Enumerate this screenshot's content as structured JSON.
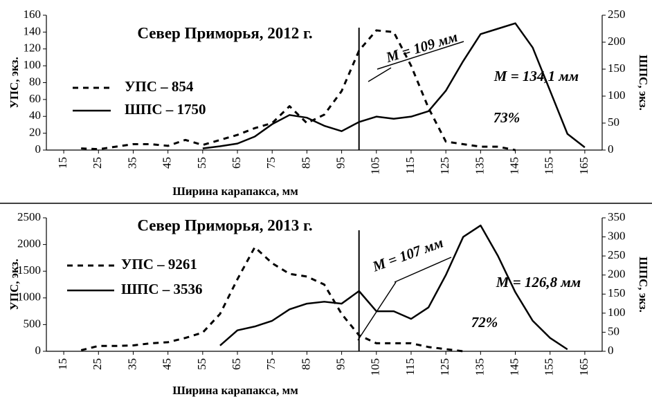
{
  "chart_data": [
    {
      "type": "line",
      "title": "Север Приморья, 2012 г.",
      "x_label": "Ширина карапакса, мм",
      "y_label": "УПС, экз.",
      "y2_label": "ШПС, экз.",
      "x": [
        20,
        25,
        30,
        35,
        40,
        45,
        50,
        55,
        60,
        65,
        70,
        75,
        80,
        85,
        90,
        95,
        100,
        105,
        110,
        115,
        120,
        125,
        130,
        135,
        140,
        145,
        150,
        155,
        160,
        165
      ],
      "series": [
        {
          "name": "УПС – 854",
          "color": "#000000",
          "linestyle": "dashed",
          "values": [
            2,
            1,
            4,
            7,
            7,
            5,
            12,
            6,
            12,
            18,
            26,
            32,
            52,
            32,
            42,
            70,
            118,
            142,
            140,
            100,
            50,
            10,
            7,
            4,
            4,
            0,
            null,
            null,
            null,
            null
          ]
        },
        {
          "name": "ШПС – 1750",
          "color": "#000000",
          "linestyle": "solid",
          "axis": "y2",
          "values": [
            null,
            null,
            null,
            null,
            null,
            null,
            null,
            3,
            7,
            12,
            25,
            48,
            65,
            60,
            45,
            35,
            52,
            62,
            58,
            62,
            72,
            110,
            165,
            215,
            225,
            235,
            190,
            110,
            30,
            5
          ]
        }
      ],
      "xlim": [
        10,
        170
      ],
      "xticks": [
        15,
        25,
        35,
        45,
        55,
        65,
        75,
        85,
        95,
        105,
        115,
        125,
        135,
        145,
        155,
        165
      ],
      "ylim": [
        0,
        160
      ],
      "yticks": [
        0,
        20,
        40,
        60,
        80,
        100,
        120,
        140,
        160
      ],
      "y2lim": [
        0,
        250
      ],
      "y2ticks": [
        0,
        50,
        100,
        150,
        200,
        250
      ],
      "vline": 100,
      "legend": "left",
      "annotations": [
        "M = 109 мм",
        "M = 134,1 мм",
        "73%"
      ]
    },
    {
      "type": "line",
      "title": "Север Приморья, 2013 г.",
      "x_label": "Ширина карапакса, мм",
      "y_label": "УПС, экз.",
      "y2_label": "ШПС, экз.",
      "x": [
        20,
        25,
        30,
        35,
        40,
        45,
        50,
        55,
        60,
        65,
        70,
        75,
        80,
        85,
        90,
        95,
        100,
        105,
        110,
        115,
        120,
        125,
        130,
        135,
        140,
        145,
        150,
        155,
        160,
        165
      ],
      "series": [
        {
          "name": "УПС – 9261",
          "color": "#000000",
          "linestyle": "dashed",
          "values": [
            20,
            100,
            100,
            110,
            150,
            170,
            250,
            350,
            700,
            1350,
            1950,
            1650,
            1450,
            1400,
            1250,
            700,
            300,
            150,
            150,
            150,
            80,
            40,
            0,
            null,
            null,
            null,
            null,
            null,
            null,
            null
          ]
        },
        {
          "name": "ШПС – 3536",
          "color": "#000000",
          "linestyle": "solid",
          "axis": "y2",
          "values": [
            null,
            null,
            null,
            null,
            null,
            null,
            null,
            null,
            15,
            55,
            65,
            80,
            110,
            125,
            130,
            125,
            158,
            105,
            105,
            85,
            115,
            200,
            300,
            330,
            250,
            155,
            80,
            35,
            5,
            null
          ]
        }
      ],
      "xlim": [
        10,
        170
      ],
      "xticks": [
        15,
        25,
        35,
        45,
        55,
        65,
        75,
        85,
        95,
        105,
        115,
        125,
        135,
        145,
        155,
        165
      ],
      "ylim": [
        0,
        2500
      ],
      "yticks": [
        0,
        500,
        1000,
        1500,
        2000,
        2500
      ],
      "y2lim": [
        0,
        350
      ],
      "y2ticks": [
        0,
        50,
        100,
        150,
        200,
        250,
        300,
        350
      ],
      "vline": 100,
      "legend": "left",
      "annotations": [
        "M = 107 мм",
        "M = 126,8 мм",
        "72%"
      ]
    }
  ]
}
